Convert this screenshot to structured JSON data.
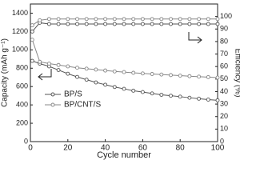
{
  "chart_data": {
    "type": "line",
    "x_label": "Cycle number",
    "y_label": "Capacity (mAh g⁻¹)",
    "y2_label": "Efficiency (%)",
    "x": [
      1,
      5,
      10,
      15,
      20,
      25,
      30,
      35,
      40,
      45,
      50,
      55,
      60,
      65,
      70,
      75,
      80,
      85,
      90,
      95,
      100
    ],
    "series": [
      {
        "name": "BP/S",
        "color": "#555555",
        "values": [
          880,
          850,
          820,
          780,
          740,
          705,
          675,
          645,
          620,
          595,
          575,
          555,
          540,
          525,
          510,
          500,
          490,
          478,
          468,
          458,
          450
        ]
      },
      {
        "name": "BP/CNT/S",
        "color": "#888888",
        "values": [
          1110,
          870,
          850,
          835,
          820,
          805,
          795,
          785,
          775,
          765,
          758,
          750,
          743,
          737,
          731,
          725,
          719,
          713,
          708,
          703,
          698
        ]
      },
      {
        "color": "#555555",
        "axis": "y2",
        "values": [
          88,
          95,
          94,
          94,
          94,
          94,
          94,
          94,
          94,
          94,
          94,
          94,
          94,
          94,
          94,
          94,
          94,
          94,
          94,
          94,
          94
        ]
      },
      {
        "color": "#888888",
        "axis": "y2",
        "values": [
          93,
          97,
          98,
          98,
          98,
          98,
          98,
          98,
          98,
          98,
          98,
          98,
          98,
          98,
          98,
          98,
          98,
          98,
          98,
          98,
          98
        ]
      }
    ],
    "xlim": [
      0,
      100
    ],
    "xticks": [
      0,
      20,
      40,
      60,
      80,
      100
    ],
    "ylim": [
      0,
      1500
    ],
    "yticks": [
      0,
      200,
      400,
      600,
      800,
      1000,
      1200,
      1400
    ],
    "y2lim": [
      0,
      110
    ],
    "y2ticks": [
      0,
      10,
      20,
      30,
      40,
      50,
      60,
      70,
      80,
      90,
      100
    ]
  }
}
